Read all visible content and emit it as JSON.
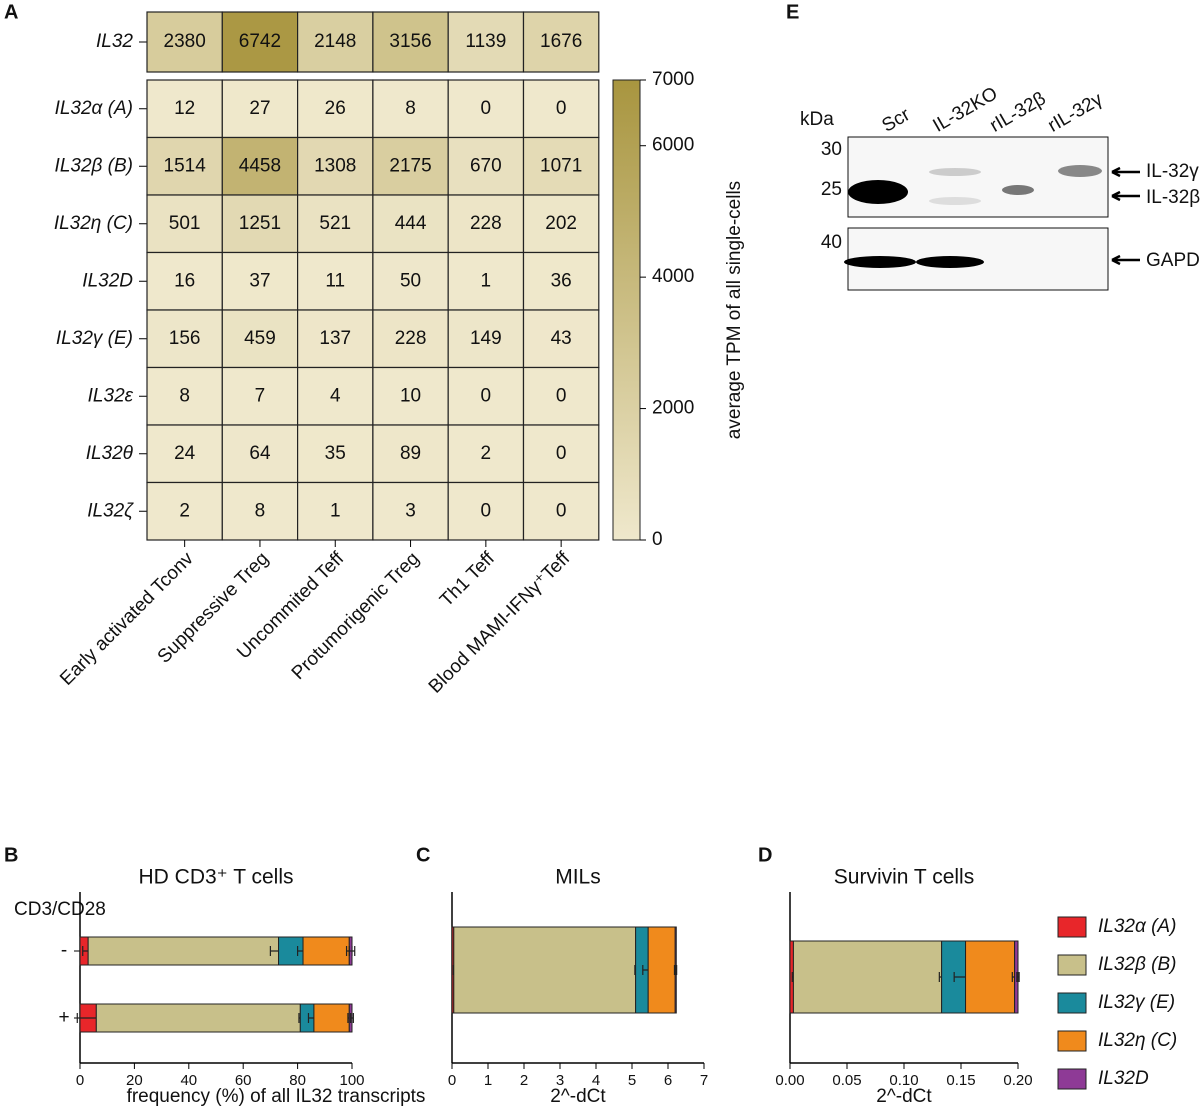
{
  "chart_data": [
    {
      "type": "heatmap",
      "panel": "A",
      "rows": [
        "IL32",
        "IL32α (A)",
        "IL32β (B)",
        "IL32η (C)",
        "IL32D",
        "IL32γ (E)",
        "IL32ε",
        "IL32θ",
        "IL32ζ"
      ],
      "categories": [
        "Early activated Tconv",
        "Suppressive Treg",
        "Uncommited Teff",
        "Protumorigenic Treg",
        "Th1 Teff",
        "Blood MAMI-IFNγ⁺Teff"
      ],
      "values": [
        [
          2380,
          6742,
          2148,
          3156,
          1139,
          1676
        ],
        [
          12,
          27,
          26,
          8,
          0,
          0
        ],
        [
          1514,
          4458,
          1308,
          2175,
          670,
          1071
        ],
        [
          501,
          1251,
          521,
          444,
          228,
          202
        ],
        [
          16,
          37,
          11,
          50,
          1,
          36
        ],
        [
          156,
          459,
          137,
          228,
          149,
          43
        ],
        [
          8,
          7,
          4,
          10,
          0,
          0
        ],
        [
          24,
          64,
          35,
          89,
          2,
          0
        ],
        [
          2,
          8,
          1,
          3,
          0,
          0
        ]
      ],
      "colors": [
        "#efe8cc",
        "#a8953f"
      ],
      "clim": [
        0,
        7000
      ],
      "cticks": [
        0,
        2000,
        4000,
        6000,
        7000
      ],
      "colorbar_label": "average TPM of all single-cells"
    },
    {
      "type": "bar",
      "orientation": "horizontal",
      "stacked": true,
      "panel": "B",
      "title": "HD CD3⁺ T cells",
      "y_label": "CD3/CD28",
      "categories": [
        "-",
        "+"
      ],
      "x_label": "frequency (%) of all IL32 transcripts",
      "xlim": [
        0,
        100
      ],
      "xticks": [
        0,
        20,
        40,
        60,
        80,
        100
      ],
      "series": [
        {
          "color": "#e8262a",
          "values": [
            3,
            6
          ],
          "errors": [
            2,
            7
          ]
        },
        {
          "color": "#c8c08a",
          "values": [
            70,
            75
          ],
          "errors": [
            3,
            0.5
          ]
        },
        {
          "color": "#1a8a9c",
          "values": [
            9,
            5
          ],
          "errors": [
            2,
            2
          ]
        },
        {
          "color": "#f08a1c",
          "values": [
            17,
            13
          ],
          "errors": [
            1,
            0.5
          ]
        },
        {
          "color": "#8e3a96",
          "values": [
            1,
            1
          ],
          "errors": [
            1,
            0.5
          ]
        }
      ]
    },
    {
      "type": "bar",
      "orientation": "horizontal",
      "stacked": true,
      "panel": "C",
      "title": "MILs",
      "categories": [
        null
      ],
      "x_label": "2^-dCt",
      "xlim": [
        0,
        7
      ],
      "xticks": [
        0,
        1,
        2,
        3,
        4,
        5,
        6,
        7
      ],
      "series": [
        {
          "color": "#e8262a",
          "values": [
            0.05
          ],
          "errors": [
            0.01
          ]
        },
        {
          "color": "#c8c08a",
          "values": [
            5.05
          ],
          "errors": [
            0.02
          ]
        },
        {
          "color": "#1a8a9c",
          "values": [
            0.35
          ],
          "errors": [
            0.15
          ]
        },
        {
          "color": "#f08a1c",
          "values": [
            0.75
          ],
          "errors": [
            0.02
          ]
        },
        {
          "color": "#8e3a96",
          "values": [
            0.03
          ],
          "errors": [
            0.01
          ]
        }
      ]
    },
    {
      "type": "bar",
      "orientation": "horizontal",
      "stacked": true,
      "panel": "D",
      "title": "Survivin T cells",
      "categories": [
        null
      ],
      "x_label": "2^-dCt",
      "xlim": [
        0,
        0.2
      ],
      "xticks": [
        {
          "value": 0,
          "label": "0.00"
        },
        0.05,
        {
          "value": 0.1,
          "label": "0.10"
        },
        0.15,
        {
          "value": 0.2,
          "label": "0.20"
        }
      ],
      "legend": "right",
      "series": [
        {
          "name": "IL32α (A)",
          "color": "#e8262a",
          "values": [
            0.003
          ],
          "errors": [
            0.001
          ]
        },
        {
          "name": "IL32β (B)",
          "color": "#c8c08a",
          "values": [
            0.13
          ],
          "errors": [
            0.002
          ]
        },
        {
          "name": "IL32γ (E)",
          "color": "#1a8a9c",
          "values": [
            0.021
          ],
          "errors": [
            0.01
          ]
        },
        {
          "name": "IL32η (C)",
          "color": "#f08a1c",
          "values": [
            0.043
          ],
          "errors": [
            0.002
          ]
        },
        {
          "name": "IL32D",
          "color": "#8e3a96",
          "values": [
            0.003
          ],
          "errors": [
            0.001
          ]
        }
      ]
    }
  ],
  "blot": {
    "panel": "E",
    "lanes": [
      "Scr",
      "IL-32KO",
      "rIL-32β",
      "rIL-32γ"
    ],
    "unit": "kDa",
    "markers": [
      30,
      25,
      40
    ],
    "bands": [
      "IL-32γ",
      "IL-32β",
      "GAPDH"
    ]
  }
}
